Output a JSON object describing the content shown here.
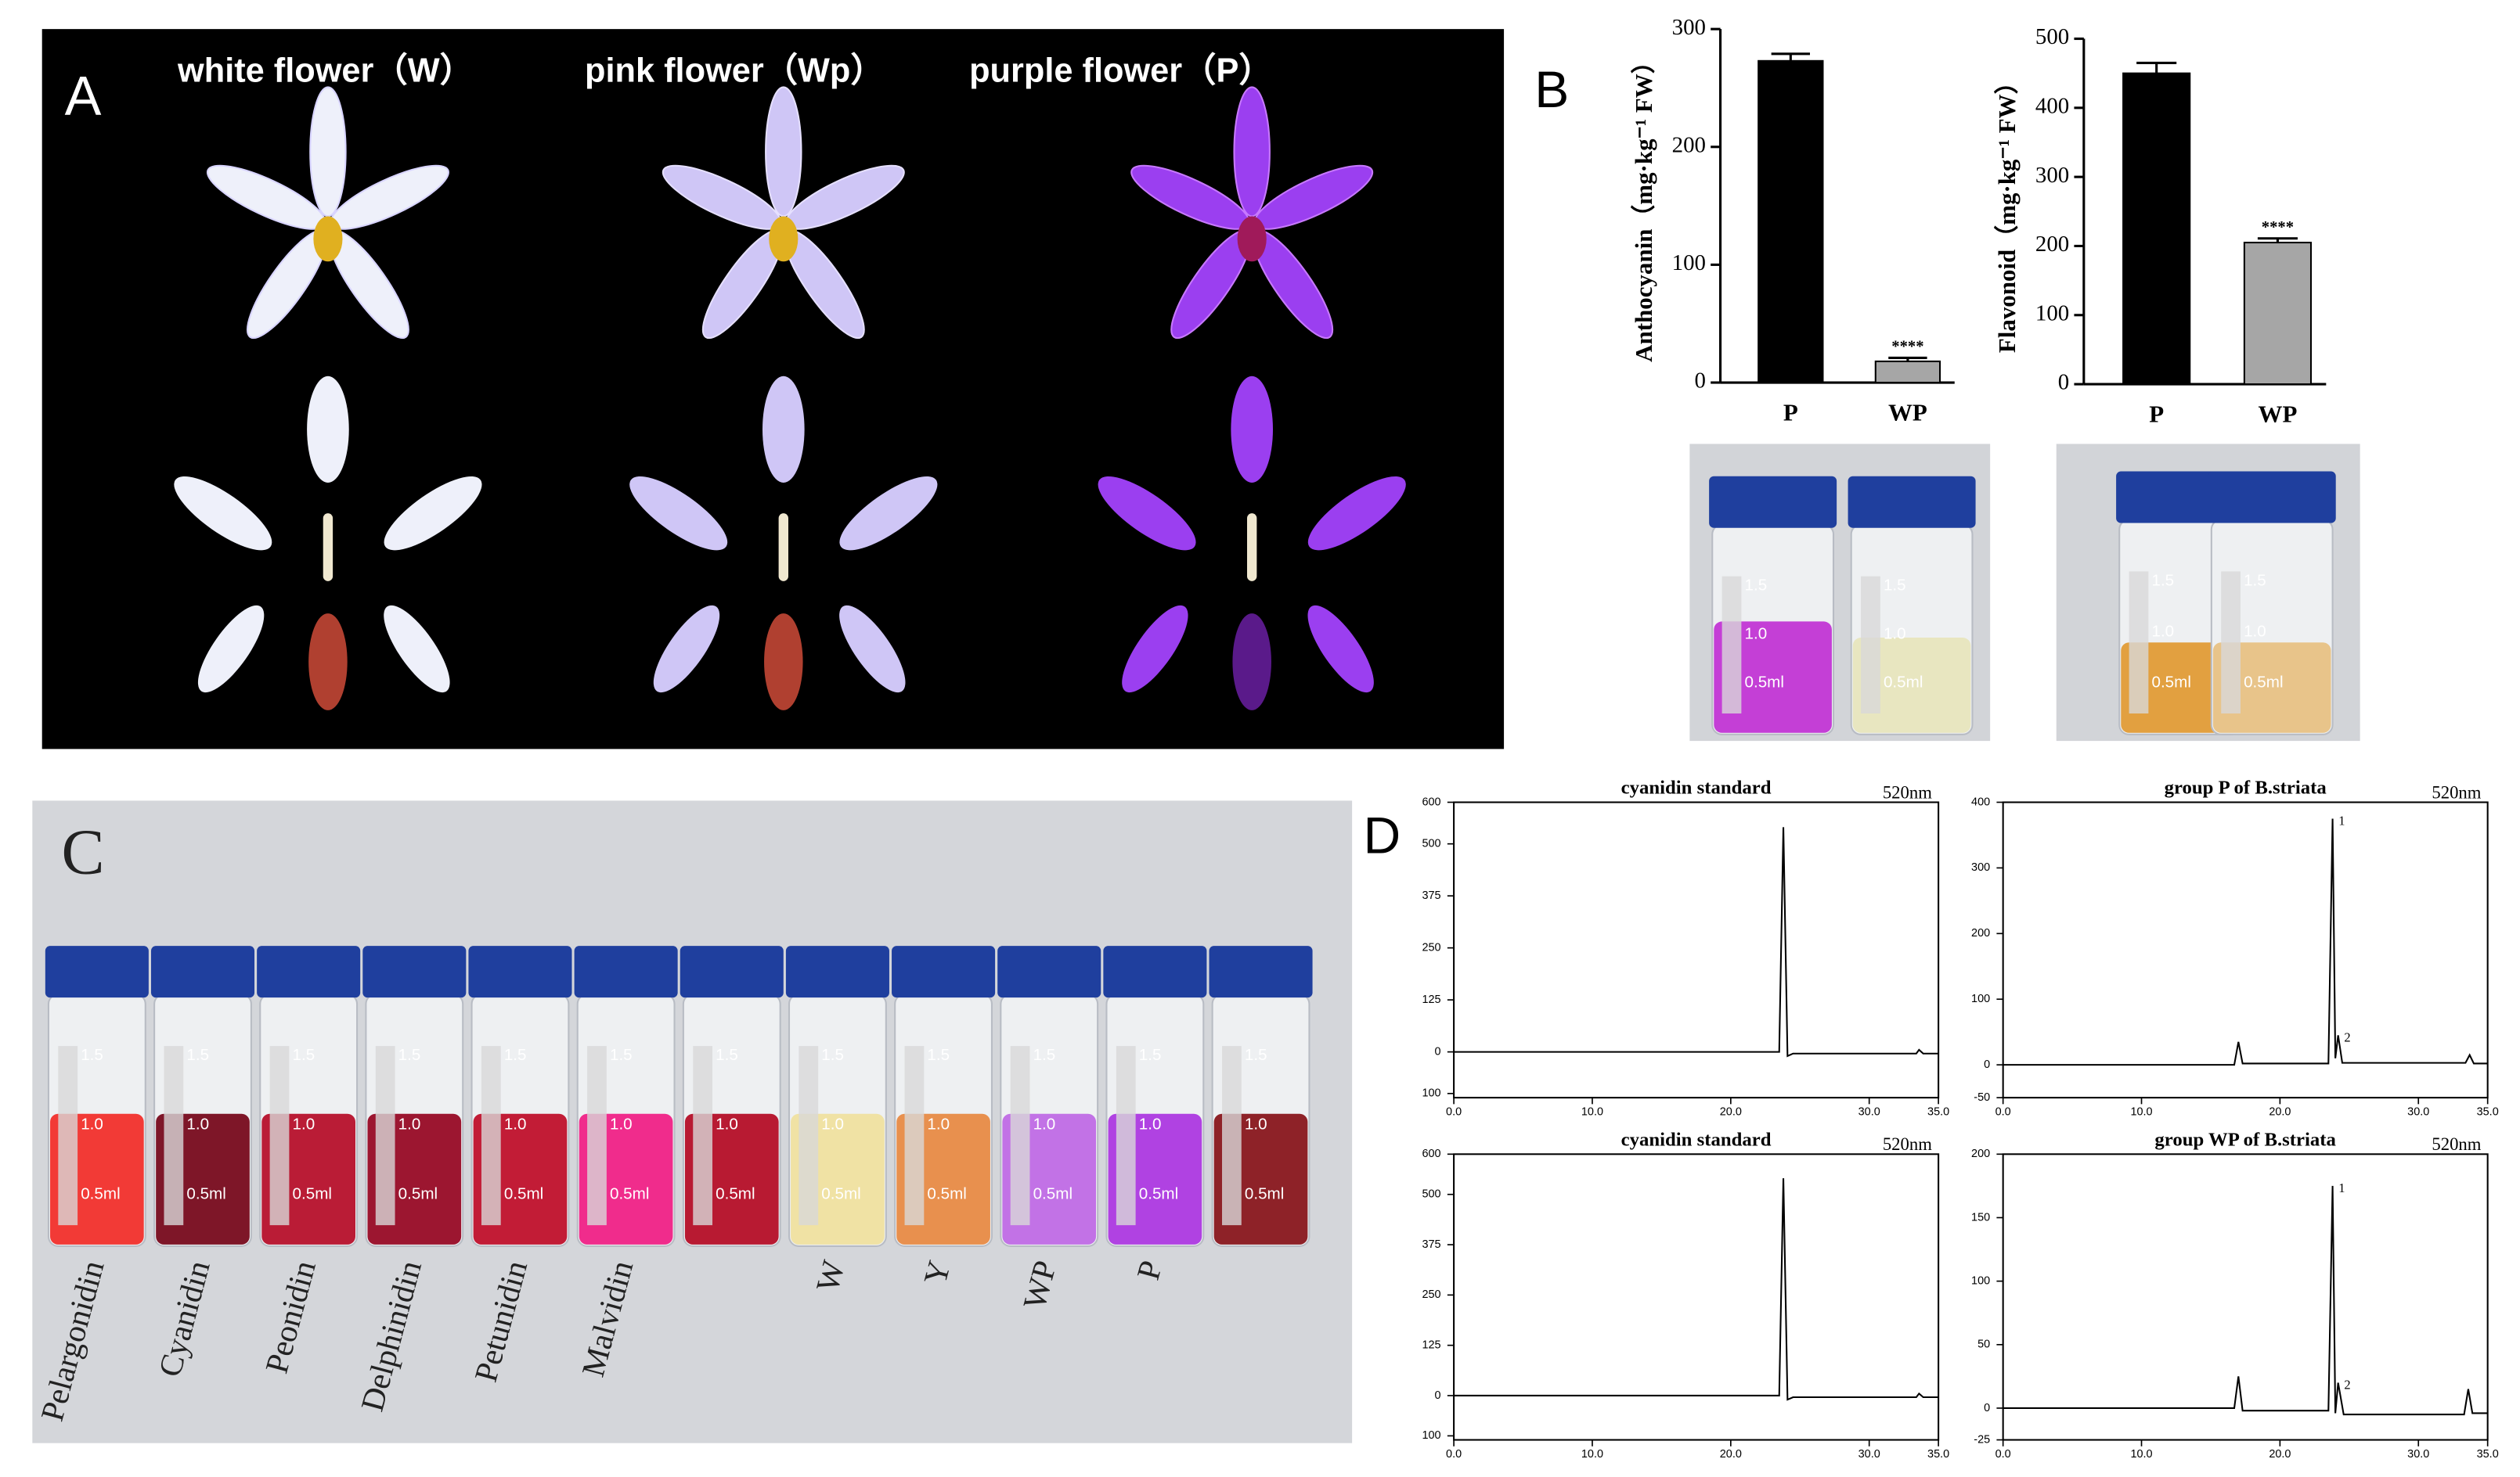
{
  "panels": {
    "a": {
      "label": "A",
      "headings": [
        "white flower（W）",
        "pink flower（Wp）",
        "purple flower（P）"
      ]
    },
    "b": {
      "label": "B"
    },
    "c": {
      "label": "C",
      "vial_labels": [
        "Pelargonidin",
        "Cyanidin",
        "Peonidin",
        "Delphinidin",
        "Petunidin",
        "Malvidin",
        null,
        "W",
        "Y",
        "WP",
        "P",
        null
      ]
    },
    "d": {
      "label": "D"
    },
    "vial_scale": [
      "1.5",
      "1.0",
      "0.5ml"
    ]
  },
  "chart_data": [
    {
      "type": "bar",
      "y_label": "Anthocyanin（mg·kg⁻¹ FW）",
      "categories": [
        "P",
        "WP"
      ],
      "values": [
        273,
        18
      ],
      "errors": [
        6,
        3
      ],
      "colors": [
        "#000000",
        "#a6a6a6"
      ],
      "annotation": "****",
      "ylim": [
        0,
        300
      ],
      "yticks": [
        0,
        100,
        200,
        300
      ]
    },
    {
      "type": "bar",
      "y_label": "Flavonoid（mg·kg⁻¹ FW）",
      "categories": [
        "P",
        "WP"
      ],
      "values": [
        450,
        205
      ],
      "errors": [
        15,
        6
      ],
      "colors": [
        "#000000",
        "#a6a6a6"
      ],
      "annotation": "****",
      "ylim": [
        0,
        500
      ],
      "yticks": [
        0,
        100,
        200,
        300,
        400,
        500
      ]
    },
    {
      "type": "line",
      "title": "cyanidin standard",
      "subtitle": "520nm",
      "color": "#000000",
      "x": [
        0,
        23.5,
        23.8,
        24.1,
        24.5,
        33.4,
        33.6,
        33.9,
        35
      ],
      "values": [
        0,
        0,
        540,
        -10,
        -4,
        -4,
        5,
        -4,
        -4
      ],
      "annotations": [],
      "xlim": [
        0,
        35
      ],
      "ylim": [
        -110,
        600
      ],
      "xticks": [
        {
          "value": 0,
          "label": "0.0"
        },
        {
          "value": 10,
          "label": "10.0"
        },
        {
          "value": 20,
          "label": "20.0"
        },
        {
          "value": 30,
          "label": "30.0"
        },
        {
          "value": 35,
          "label": "35.0"
        }
      ],
      "yticks": [
        600,
        500,
        375,
        250,
        125,
        0,
        {
          "value": -100,
          "label": "100"
        }
      ]
    },
    {
      "type": "line",
      "title": "group P of B.striata",
      "subtitle": "520nm",
      "color": "#000000",
      "x": [
        0,
        16.7,
        17,
        17.3,
        23.5,
        23.8,
        24.0,
        24.2,
        24.5,
        33.4,
        33.7,
        34,
        35
      ],
      "values": [
        0,
        0,
        35,
        2,
        2,
        375,
        10,
        45,
        3,
        3,
        15,
        2,
        2
      ],
      "annotations": [
        {
          "text": "1",
          "x": 24.0,
          "y": 375
        },
        {
          "text": "2",
          "x": 24.4,
          "y": 45
        }
      ],
      "xlim": [
        0,
        35
      ],
      "ylim": [
        -50,
        400
      ],
      "xticks": [
        {
          "value": 0,
          "label": "0.0"
        },
        {
          "value": 10,
          "label": "10.0"
        },
        {
          "value": 20,
          "label": "20.0"
        },
        {
          "value": 30,
          "label": "30.0"
        },
        {
          "value": 35,
          "label": "35.0"
        }
      ],
      "yticks": [
        400,
        300,
        200,
        100,
        0,
        -50
      ]
    },
    {
      "type": "line",
      "title": "cyanidin standard",
      "subtitle": "520nm",
      "color": "#000000",
      "x": [
        0,
        23.5,
        23.8,
        24.1,
        24.5,
        33.4,
        33.6,
        33.9,
        35
      ],
      "values": [
        0,
        0,
        540,
        -10,
        -4,
        -4,
        5,
        -4,
        -4
      ],
      "annotations": [],
      "xlim": [
        0,
        35
      ],
      "ylim": [
        -110,
        600
      ],
      "xticks": [
        {
          "value": 0,
          "label": "0.0"
        },
        {
          "value": 10,
          "label": "10.0"
        },
        {
          "value": 20,
          "label": "20.0"
        },
        {
          "value": 30,
          "label": "30.0"
        },
        {
          "value": 35,
          "label": "35.0"
        }
      ],
      "yticks": [
        600,
        500,
        375,
        250,
        125,
        0,
        {
          "value": -100,
          "label": "100"
        }
      ]
    },
    {
      "type": "line",
      "title": "group WP of B.striata",
      "subtitle": "520nm",
      "color": "#000000",
      "x": [
        0,
        16.7,
        17,
        17.3,
        23.5,
        23.8,
        24.0,
        24.2,
        24.6,
        33.3,
        33.6,
        33.9,
        35
      ],
      "values": [
        0,
        0,
        25,
        -2,
        -2,
        175,
        -4,
        20,
        -5,
        -5,
        15,
        -4,
        -4
      ],
      "annotations": [
        {
          "text": "1",
          "x": 24.0,
          "y": 175
        },
        {
          "text": "2",
          "x": 24.4,
          "y": 20
        }
      ],
      "xlim": [
        0,
        35
      ],
      "ylim": [
        -25,
        200
      ],
      "xticks": [
        {
          "value": 0,
          "label": "0.0"
        },
        {
          "value": 10,
          "label": "10.0"
        },
        {
          "value": 20,
          "label": "20.0"
        },
        {
          "value": 30,
          "label": "30.0"
        },
        {
          "value": 35,
          "label": "35.0"
        }
      ],
      "yticks": [
        200,
        150,
        100,
        50,
        0,
        -25
      ]
    }
  ]
}
